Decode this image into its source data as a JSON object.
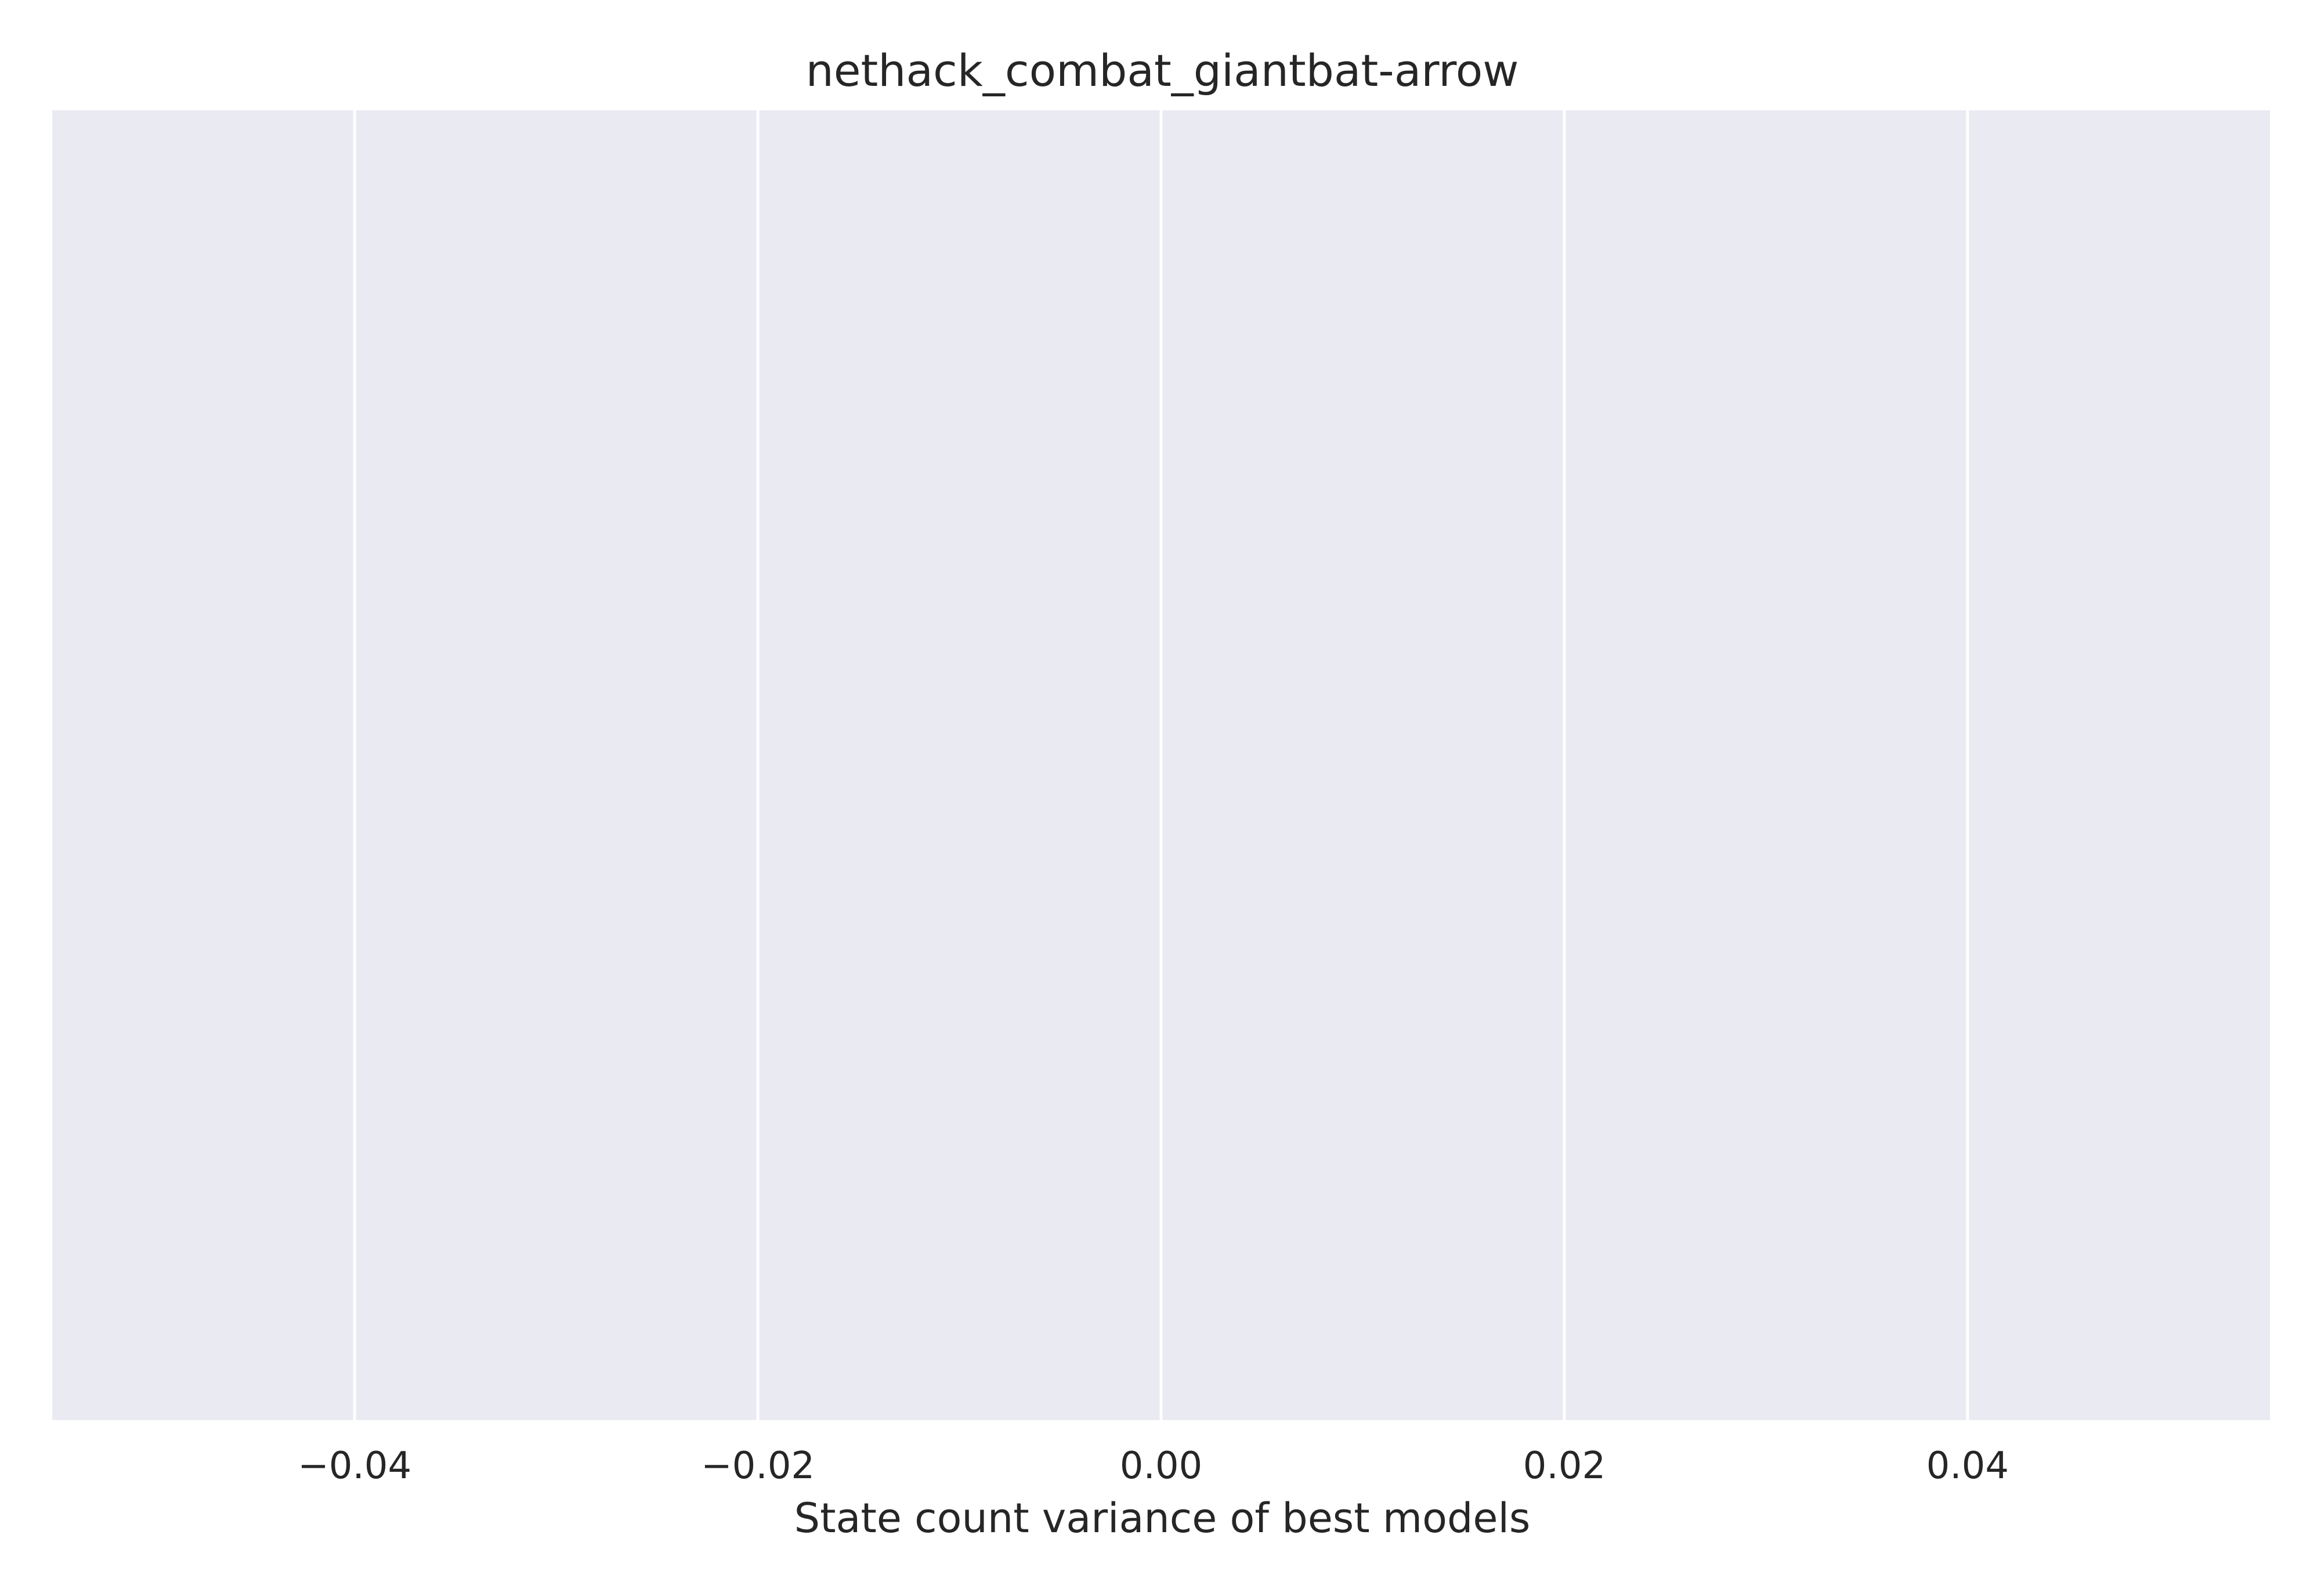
{
  "chart_data": {
    "type": "bar",
    "title": "nethack_combat_giantbat-arrow",
    "xlabel": "State count variance of best models",
    "ylabel": "",
    "orientation": "horizontal",
    "categories": [],
    "values": [],
    "xlim": [
      -0.055,
      0.055
    ],
    "xticks": [
      -0.04,
      -0.02,
      0.0,
      0.02,
      0.04
    ],
    "xtick_labels": [
      "−0.04",
      "−0.02",
      "0.00",
      "0.02",
      "0.04"
    ],
    "grid": true,
    "background_color": "#eaeaf2",
    "grid_color": "#ffffff",
    "text_color": "#262626"
  }
}
